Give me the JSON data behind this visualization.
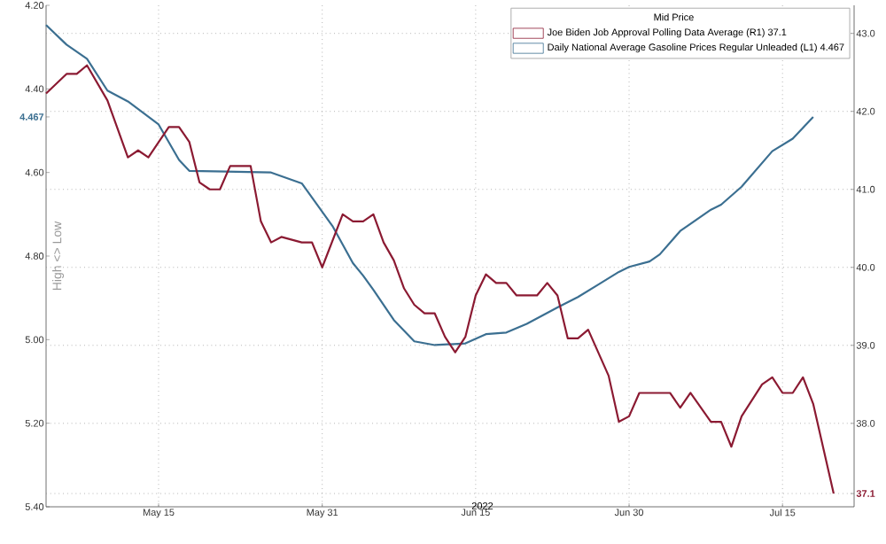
{
  "chart_data": {
    "type": "line",
    "legend_title": "Mid Price",
    "xlabel": "2022",
    "ylabel": "High <> Low",
    "legend": "top right",
    "grid": true,
    "xlim": [
      "2022-05-04",
      "2022-07-22"
    ],
    "xticks": [
      {
        "value": "2022-05-15",
        "label": "May 15"
      },
      {
        "value": "2022-05-31",
        "label": "May 31"
      },
      {
        "value": "2022-06-15",
        "label": "Jun 15"
      },
      {
        "value": "2022-06-30",
        "label": "Jun 30"
      },
      {
        "value": "2022-07-15",
        "label": "Jul 15"
      }
    ],
    "ylim": [
      5.4,
      4.2
    ],
    "yticks": [
      {
        "value": 4.2,
        "label": "4.20"
      },
      {
        "value": 4.4,
        "label": "4.40"
      },
      4.467,
      {
        "value": 4.6,
        "label": "4.60"
      },
      {
        "value": 4.8,
        "label": "4.80"
      },
      {
        "value": 5.0,
        "label": "5.00"
      },
      {
        "value": 5.2,
        "label": "5.20"
      },
      {
        "value": 5.4,
        "label": "5.40"
      }
    ],
    "y2lim": [
      36.93,
      43.36
    ],
    "y2ticks": [
      37.1,
      {
        "value": 38,
        "label": "38.0"
      },
      {
        "value": 39,
        "label": "39.0"
      },
      {
        "value": 40,
        "label": "40.0"
      },
      {
        "value": 41,
        "label": "41.0"
      },
      {
        "value": 42,
        "label": "42.0"
      },
      {
        "value": 43,
        "label": "43.0"
      }
    ],
    "series": [
      {
        "name": "Joe Biden Job Approval Polling Data Average (R1) 37.1",
        "color": "#8b1a32",
        "axis": "y2",
        "x": [
          "2022-05-04",
          "2022-05-06",
          "2022-05-07",
          "2022-05-08",
          "2022-05-10",
          "2022-05-12",
          "2022-05-13",
          "2022-05-14",
          "2022-05-16",
          "2022-05-17",
          "2022-05-18",
          "2022-05-19",
          "2022-05-20",
          "2022-05-21",
          "2022-05-22",
          "2022-05-24",
          "2022-05-25",
          "2022-05-26",
          "2022-05-27",
          "2022-05-29",
          "2022-05-30",
          "2022-05-31",
          "2022-06-02",
          "2022-06-03",
          "2022-06-04",
          "2022-06-05",
          "2022-06-06",
          "2022-06-07",
          "2022-06-08",
          "2022-06-09",
          "2022-06-10",
          "2022-06-11",
          "2022-06-12",
          "2022-06-13",
          "2022-06-14",
          "2022-06-15",
          "2022-06-16",
          "2022-06-17",
          "2022-06-18",
          "2022-06-19",
          "2022-06-21",
          "2022-06-22",
          "2022-06-23",
          "2022-06-24",
          "2022-06-25",
          "2022-06-26",
          "2022-06-28",
          "2022-06-29",
          "2022-06-30",
          "2022-07-01",
          "2022-07-04",
          "2022-07-05",
          "2022-07-06",
          "2022-07-08",
          "2022-07-09",
          "2022-07-10",
          "2022-07-11",
          "2022-07-13",
          "2022-07-14",
          "2022-07-15",
          "2022-07-16",
          "2022-07-17",
          "2022-07-18",
          "2022-07-20"
        ],
        "values": [
          42.23,
          42.48,
          42.48,
          42.59,
          42.14,
          41.41,
          41.5,
          41.41,
          41.8,
          41.8,
          41.61,
          41.09,
          41.0,
          41.0,
          41.3,
          41.3,
          40.59,
          40.32,
          40.39,
          40.32,
          40.32,
          40.0,
          40.68,
          40.59,
          40.59,
          40.68,
          40.32,
          40.09,
          39.73,
          39.52,
          39.41,
          39.41,
          39.11,
          38.91,
          39.11,
          39.64,
          39.91,
          39.8,
          39.8,
          39.64,
          39.64,
          39.8,
          39.64,
          39.09,
          39.09,
          39.2,
          38.61,
          38.02,
          38.09,
          38.39,
          38.39,
          38.2,
          38.39,
          38.02,
          38.02,
          37.7,
          38.09,
          38.5,
          38.59,
          38.39,
          38.39,
          38.59,
          38.25,
          37.1
        ]
      },
      {
        "name": "Daily National Average Gasoline Prices Regular Unleaded (L1) 4.467",
        "color": "#3b6f91",
        "x": [
          "2022-05-04",
          "2022-05-06",
          "2022-05-08",
          "2022-05-10",
          "2022-05-12",
          "2022-05-15",
          "2022-05-17",
          "2022-05-18",
          "2022-05-26",
          "2022-05-29",
          "2022-06-01",
          "2022-06-03",
          "2022-06-04",
          "2022-06-05",
          "2022-06-07",
          "2022-06-09",
          "2022-06-11",
          "2022-06-14",
          "2022-06-16",
          "2022-06-18",
          "2022-06-20",
          "2022-06-23",
          "2022-06-25",
          "2022-06-27",
          "2022-06-29",
          "2022-06-30",
          "2022-07-02",
          "2022-07-03",
          "2022-07-05",
          "2022-07-08",
          "2022-07-09",
          "2022-07-11",
          "2022-07-14",
          "2022-07-16",
          "2022-07-18"
        ],
        "values": [
          4.247,
          4.294,
          4.328,
          4.404,
          4.43,
          4.485,
          4.57,
          4.596,
          4.6,
          4.626,
          4.728,
          4.817,
          4.847,
          4.881,
          4.953,
          5.004,
          5.013,
          5.009,
          4.987,
          4.983,
          4.962,
          4.923,
          4.898,
          4.868,
          4.838,
          4.826,
          4.813,
          4.796,
          4.74,
          4.689,
          4.677,
          4.634,
          4.549,
          4.519,
          4.467
        ]
      }
    ]
  }
}
